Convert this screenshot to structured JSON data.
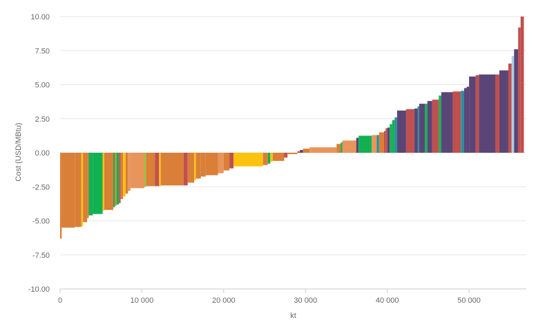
{
  "chart_data": {
    "type": "bar",
    "subtype": "cost-curve (variable-width bars)",
    "xlabel": "kt",
    "ylabel": "Cost (USD/MBtu)",
    "xlim": [
      0,
      57000
    ],
    "ylim": [
      -10,
      10
    ],
    "x_ticks": [
      "0",
      "10 000",
      "20 000",
      "30 000",
      "40 000",
      "50 000"
    ],
    "y_ticks": [
      "10.00",
      "7.50",
      "5.00",
      "2.50",
      "0.00",
      "-2.50",
      "-5.00",
      "-7.50",
      "-10.00"
    ],
    "grid": true,
    "legend": "none",
    "colors": {
      "orange": "#d97f37",
      "light_orange": "#e8955c",
      "green": "#11b152",
      "yellow": "#fcc20e",
      "red": "#c0504d",
      "purple": "#5b4577",
      "teal": "#2a8fa0",
      "lime": "#8cc63f",
      "light_blue": "#a9d0e8"
    },
    "bars": [
      {
        "x0": 0,
        "x1": 200,
        "value": -6.3,
        "color": "orange"
      },
      {
        "x0": 200,
        "x1": 1800,
        "value": -5.5,
        "color": "orange"
      },
      {
        "x0": 1800,
        "x1": 2600,
        "value": -5.45,
        "color": "orange"
      },
      {
        "x0": 2600,
        "x1": 2800,
        "value": -5.4,
        "color": "yellow"
      },
      {
        "x0": 2800,
        "x1": 3300,
        "value": -5.1,
        "color": "orange"
      },
      {
        "x0": 3300,
        "x1": 3500,
        "value": -4.8,
        "color": "orange"
      },
      {
        "x0": 3500,
        "x1": 4000,
        "value": -4.6,
        "color": "green"
      },
      {
        "x0": 4000,
        "x1": 5200,
        "value": -4.5,
        "color": "green"
      },
      {
        "x0": 5200,
        "x1": 5400,
        "value": -4.25,
        "color": "yellow"
      },
      {
        "x0": 5400,
        "x1": 6500,
        "value": -4.2,
        "color": "orange"
      },
      {
        "x0": 6500,
        "x1": 6700,
        "value": -4.0,
        "color": "green"
      },
      {
        "x0": 6700,
        "x1": 6900,
        "value": -3.9,
        "color": "orange"
      },
      {
        "x0": 6900,
        "x1": 7200,
        "value": -3.8,
        "color": "green"
      },
      {
        "x0": 7200,
        "x1": 7400,
        "value": -3.7,
        "color": "red"
      },
      {
        "x0": 7400,
        "x1": 7700,
        "value": -3.4,
        "color": "orange"
      },
      {
        "x0": 7700,
        "x1": 8000,
        "value": -3.2,
        "color": "yellow"
      },
      {
        "x0": 8000,
        "x1": 8300,
        "value": -3.0,
        "color": "orange"
      },
      {
        "x0": 8300,
        "x1": 8600,
        "value": -2.8,
        "color": "light_orange"
      },
      {
        "x0": 8600,
        "x1": 10300,
        "value": -2.6,
        "color": "light_orange"
      },
      {
        "x0": 10300,
        "x1": 10500,
        "value": -2.5,
        "color": "lime"
      },
      {
        "x0": 10500,
        "x1": 11600,
        "value": -2.45,
        "color": "orange"
      },
      {
        "x0": 11600,
        "x1": 12100,
        "value": -2.45,
        "color": "red"
      },
      {
        "x0": 12100,
        "x1": 12300,
        "value": -2.45,
        "color": "yellow"
      },
      {
        "x0": 12300,
        "x1": 15100,
        "value": -2.4,
        "color": "orange"
      },
      {
        "x0": 15100,
        "x1": 15600,
        "value": -2.4,
        "color": "red"
      },
      {
        "x0": 15600,
        "x1": 16400,
        "value": -2.2,
        "color": "orange"
      },
      {
        "x0": 16400,
        "x1": 16600,
        "value": -2.0,
        "color": "yellow"
      },
      {
        "x0": 16600,
        "x1": 17200,
        "value": -1.9,
        "color": "orange"
      },
      {
        "x0": 17200,
        "x1": 17800,
        "value": -1.75,
        "color": "orange"
      },
      {
        "x0": 17800,
        "x1": 19300,
        "value": -1.65,
        "color": "orange"
      },
      {
        "x0": 19300,
        "x1": 20000,
        "value": -1.5,
        "color": "light_orange"
      },
      {
        "x0": 20000,
        "x1": 20700,
        "value": -1.3,
        "color": "orange"
      },
      {
        "x0": 20700,
        "x1": 21200,
        "value": -1.15,
        "color": "red"
      },
      {
        "x0": 21200,
        "x1": 24800,
        "value": -1.0,
        "color": "yellow"
      },
      {
        "x0": 24800,
        "x1": 25400,
        "value": -0.9,
        "color": "orange"
      },
      {
        "x0": 25400,
        "x1": 25700,
        "value": -0.8,
        "color": "green"
      },
      {
        "x0": 25700,
        "x1": 26000,
        "value": -0.65,
        "color": "yellow"
      },
      {
        "x0": 26000,
        "x1": 27400,
        "value": -0.6,
        "color": "orange"
      },
      {
        "x0": 27400,
        "x1": 27800,
        "value": -0.35,
        "color": "red"
      },
      {
        "x0": 27800,
        "x1": 29000,
        "value": -0.1,
        "color": "orange"
      },
      {
        "x0": 29000,
        "x1": 29300,
        "value": 0.1,
        "color": "red"
      },
      {
        "x0": 29300,
        "x1": 29700,
        "value": 0.2,
        "color": "purple"
      },
      {
        "x0": 29700,
        "x1": 30500,
        "value": 0.3,
        "color": "orange"
      },
      {
        "x0": 30500,
        "x1": 33800,
        "value": 0.4,
        "color": "light_orange"
      },
      {
        "x0": 33800,
        "x1": 34300,
        "value": 0.65,
        "color": "orange"
      },
      {
        "x0": 34300,
        "x1": 34500,
        "value": 0.75,
        "color": "green"
      },
      {
        "x0": 34500,
        "x1": 36200,
        "value": 0.9,
        "color": "light_orange"
      },
      {
        "x0": 36200,
        "x1": 36500,
        "value": 1.1,
        "color": "purple"
      },
      {
        "x0": 36500,
        "x1": 38100,
        "value": 1.25,
        "color": "green"
      },
      {
        "x0": 38100,
        "x1": 38700,
        "value": 1.3,
        "color": "light_orange"
      },
      {
        "x0": 38700,
        "x1": 39000,
        "value": 1.3,
        "color": "teal"
      },
      {
        "x0": 39000,
        "x1": 39600,
        "value": 1.5,
        "color": "orange"
      },
      {
        "x0": 39600,
        "x1": 39800,
        "value": 1.6,
        "color": "red"
      },
      {
        "x0": 39800,
        "x1": 40000,
        "value": 1.8,
        "color": "red"
      },
      {
        "x0": 40000,
        "x1": 40300,
        "value": 1.85,
        "color": "purple"
      },
      {
        "x0": 40300,
        "x1": 40600,
        "value": 2.1,
        "color": "green"
      },
      {
        "x0": 40600,
        "x1": 40900,
        "value": 2.4,
        "color": "green"
      },
      {
        "x0": 40900,
        "x1": 41200,
        "value": 2.6,
        "color": "teal"
      },
      {
        "x0": 41200,
        "x1": 42300,
        "value": 3.1,
        "color": "purple"
      },
      {
        "x0": 42300,
        "x1": 43300,
        "value": 3.2,
        "color": "red"
      },
      {
        "x0": 43300,
        "x1": 43700,
        "value": 3.25,
        "color": "purple"
      },
      {
        "x0": 43700,
        "x1": 43900,
        "value": 3.4,
        "color": "teal"
      },
      {
        "x0": 43900,
        "x1": 44600,
        "value": 3.6,
        "color": "purple"
      },
      {
        "x0": 44600,
        "x1": 44900,
        "value": 3.6,
        "color": "green"
      },
      {
        "x0": 44900,
        "x1": 45500,
        "value": 3.8,
        "color": "purple"
      },
      {
        "x0": 45500,
        "x1": 46300,
        "value": 3.9,
        "color": "red"
      },
      {
        "x0": 46300,
        "x1": 46600,
        "value": 4.2,
        "color": "green"
      },
      {
        "x0": 46600,
        "x1": 48000,
        "value": 4.45,
        "color": "purple"
      },
      {
        "x0": 48000,
        "x1": 49000,
        "value": 4.5,
        "color": "red"
      },
      {
        "x0": 49000,
        "x1": 49400,
        "value": 4.55,
        "color": "teal"
      },
      {
        "x0": 49400,
        "x1": 49700,
        "value": 4.75,
        "color": "purple"
      },
      {
        "x0": 49700,
        "x1": 50000,
        "value": 4.85,
        "color": "purple"
      },
      {
        "x0": 50000,
        "x1": 50800,
        "value": 5.6,
        "color": "purple"
      },
      {
        "x0": 50800,
        "x1": 51200,
        "value": 5.7,
        "color": "red"
      },
      {
        "x0": 51200,
        "x1": 53200,
        "value": 5.75,
        "color": "purple"
      },
      {
        "x0": 53200,
        "x1": 53700,
        "value": 5.75,
        "color": "red"
      },
      {
        "x0": 53700,
        "x1": 54800,
        "value": 6.05,
        "color": "purple"
      },
      {
        "x0": 54800,
        "x1": 55200,
        "value": 6.55,
        "color": "red"
      },
      {
        "x0": 55200,
        "x1": 55500,
        "value": 7.1,
        "color": "light_blue"
      },
      {
        "x0": 55500,
        "x1": 56000,
        "value": 7.6,
        "color": "purple"
      },
      {
        "x0": 56000,
        "x1": 56300,
        "value": 9.2,
        "color": "red"
      },
      {
        "x0": 56300,
        "x1": 56700,
        "value": 10.0,
        "color": "red"
      }
    ]
  }
}
